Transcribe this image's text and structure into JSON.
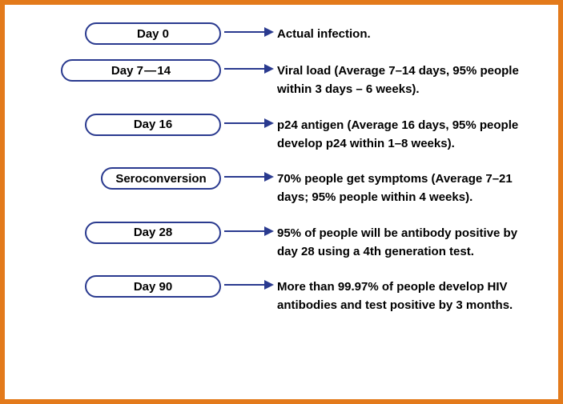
{
  "frame": {
    "border_color": "#e37a1b",
    "border_width": 6,
    "background": "#ffffff"
  },
  "pill_style": {
    "border_color": "#2a3a8f",
    "border_width": 2,
    "text_color": "#000000",
    "font_size": 15,
    "height": 28
  },
  "arrow_style": {
    "color": "#2a3a8f",
    "stroke_width": 2,
    "length": 50
  },
  "desc_style": {
    "color": "#000000",
    "font_size": 15,
    "line_height": 1.55
  },
  "rows": [
    {
      "label": "Day 0",
      "pill_width": 170,
      "desc": "Actual infection."
    },
    {
      "label": "Day 7 — 14",
      "pill_width": 200,
      "desc": "Viral load  (Average 7–14 days, 95% people within 3 days – 6 weeks)."
    },
    {
      "label": "Day 16",
      "pill_width": 170,
      "desc": "p24 antigen (Average 16 days, 95% people develop p24 within 1–8 weeks)."
    },
    {
      "label": "Seroconversion",
      "pill_width": 150,
      "desc": "70% people get symptoms (Average 7–21 days; 95% people within 4 weeks)."
    },
    {
      "label": "Day 28",
      "pill_width": 170,
      "desc": "95% of people will be antibody positive by day 28 using a 4th generation test."
    },
    {
      "label": "Day 90",
      "pill_width": 170,
      "desc": "More than 99.97% of people develop HIV antibodies and test positive by 3 months."
    }
  ]
}
